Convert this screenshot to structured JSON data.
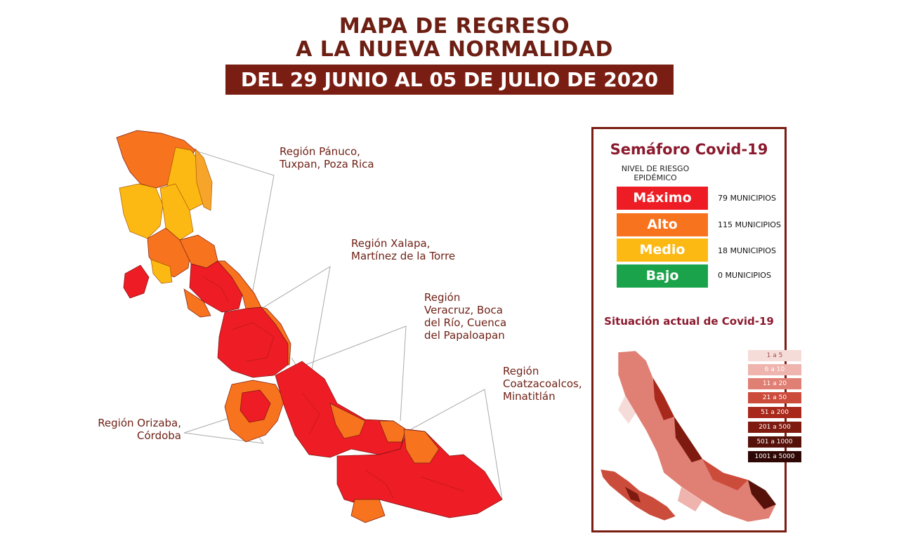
{
  "header": {
    "title_line1": "MAPA DE REGRESO",
    "title_line2": "A LA NUEVA NORMALIDAD",
    "date_range": "DEL 29 JUNIO AL 05 DE JULIO DE 2020"
  },
  "map": {
    "regions": [
      {
        "name_line1": "Región Pánuco,",
        "name_line2": "Tuxpan, Poza Rica",
        "risk": "Alto/Medio"
      },
      {
        "name_line1": "Región Xalapa,",
        "name_line2": "Martínez de la Torre",
        "risk": "Máximo"
      },
      {
        "name_line1": "Región",
        "name_line2": "Veracruz, Boca",
        "name_line3": "del Río, Cuenca",
        "name_line4": "del Papaloapan",
        "risk": "Máximo"
      },
      {
        "name_line1": "Región",
        "name_line2": "Coatzacoalcos,",
        "name_line3": "Minatitlán",
        "risk": "Máximo"
      },
      {
        "name_line1": "Región Orizaba,",
        "name_line2": "Córdoba",
        "risk": "Máximo"
      }
    ]
  },
  "legend": {
    "title": "Semáforo Covid-19",
    "risk_label": "NIVEL DE RIESGO EPIDÉMICO",
    "levels": [
      {
        "label": "Máximo",
        "count": "79 MUNICIPIOS",
        "color": "#ee1c24"
      },
      {
        "label": "Alto",
        "count": "115 MUNICIPIOS",
        "color": "#f7731e"
      },
      {
        "label": "Medio",
        "count": "18 MUNICIPIOS",
        "color": "#fdb913"
      },
      {
        "label": "Bajo",
        "count": "0 MUNICIPIOS",
        "color": "#1aa34a"
      }
    ],
    "situation_title": "Situación actual de Covid-19",
    "scale": [
      {
        "label": "1 a 5",
        "color": "#f6dcd8"
      },
      {
        "label": "6 a 10",
        "color": "#eeb4ad"
      },
      {
        "label": "11 a 20",
        "color": "#e07f74"
      },
      {
        "label": "21 a 50",
        "color": "#cc4c3c"
      },
      {
        "label": "51 a 200",
        "color": "#a8291c"
      },
      {
        "label": "201 a 500",
        "color": "#7e1a10"
      },
      {
        "label": "501 a 1000",
        "color": "#56110a"
      },
      {
        "label": "1001 a 5000",
        "color": "#2f0805"
      }
    ]
  },
  "colors": {
    "brand": "#7a1d12",
    "maximo": "#ee1c24",
    "alto": "#f7731e",
    "medio": "#fdb913"
  }
}
